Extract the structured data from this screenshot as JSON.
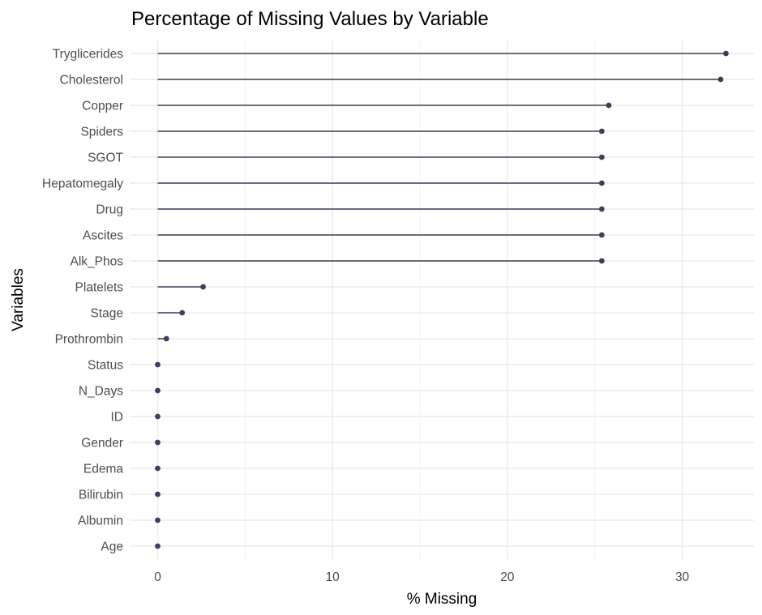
{
  "chart_data": {
    "type": "lollipop",
    "title": "Percentage of Missing Values by Variable",
    "xlabel": "% Missing",
    "ylabel": "Variables",
    "xlim": [
      -1.6,
      34.1
    ],
    "xticks": [
      0,
      10,
      20,
      30
    ],
    "grid": true,
    "legend": "none",
    "colors": {
      "mark": "#3d3d5c",
      "grid": "#ebebeb"
    },
    "categories": [
      "Tryglicerides",
      "Cholesterol",
      "Copper",
      "Spiders",
      "SGOT",
      "Hepatomegaly",
      "Drug",
      "Ascites",
      "Alk_Phos",
      "Platelets",
      "Stage",
      "Prothrombin",
      "Status",
      "N_Days",
      "ID",
      "Gender",
      "Edema",
      "Bilirubin",
      "Albumin",
      "Age"
    ],
    "values": [
      32.5,
      32.2,
      25.8,
      25.4,
      25.4,
      25.4,
      25.4,
      25.4,
      25.4,
      2.6,
      1.4,
      0.5,
      0,
      0,
      0,
      0,
      0,
      0,
      0,
      0
    ]
  }
}
